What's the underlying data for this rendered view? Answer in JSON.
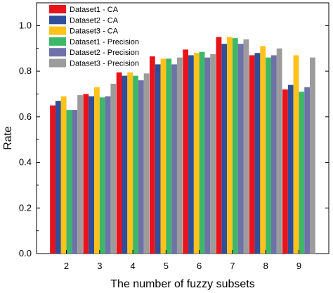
{
  "chart_data": {
    "type": "bar",
    "title": "",
    "xlabel": "The number of fuzzy subsets",
    "ylabel": "Rate",
    "ylim": [
      0,
      1.1
    ],
    "yticks": [
      "0.0",
      "0.2",
      "0.4",
      "0.6",
      "0.8",
      "1.0"
    ],
    "categories": [
      "2",
      "3",
      "4",
      "5",
      "6",
      "7",
      "8",
      "9"
    ],
    "grid": false,
    "legend_position": "top-left",
    "series": [
      {
        "name": "Dataset1 - CA",
        "color": "#e8131b",
        "values": [
          0.65,
          0.7,
          0.795,
          0.865,
          0.895,
          0.95,
          0.87,
          0.72
        ]
      },
      {
        "name": "Dataset2 - CA",
        "color": "#2f4f9a",
        "values": [
          0.67,
          0.69,
          0.78,
          0.83,
          0.87,
          0.92,
          0.88,
          0.74
        ]
      },
      {
        "name": "Dataset3 - CA",
        "color": "#ffc21a",
        "values": [
          0.69,
          0.73,
          0.795,
          0.855,
          0.88,
          0.95,
          0.91,
          0.87
        ]
      },
      {
        "name": "Dataset1 - Precision",
        "color": "#3cb868",
        "values": [
          0.63,
          0.685,
          0.78,
          0.855,
          0.885,
          0.945,
          0.86,
          0.71
        ]
      },
      {
        "name": "Dataset2 - Precision",
        "color": "#6e72a8",
        "values": [
          0.63,
          0.69,
          0.76,
          0.83,
          0.86,
          0.92,
          0.87,
          0.73
        ]
      },
      {
        "name": "Dataset3 - Precision",
        "color": "#9c9c9c",
        "values": [
          0.695,
          0.745,
          0.79,
          0.86,
          0.875,
          0.94,
          0.9,
          0.86
        ]
      }
    ]
  }
}
